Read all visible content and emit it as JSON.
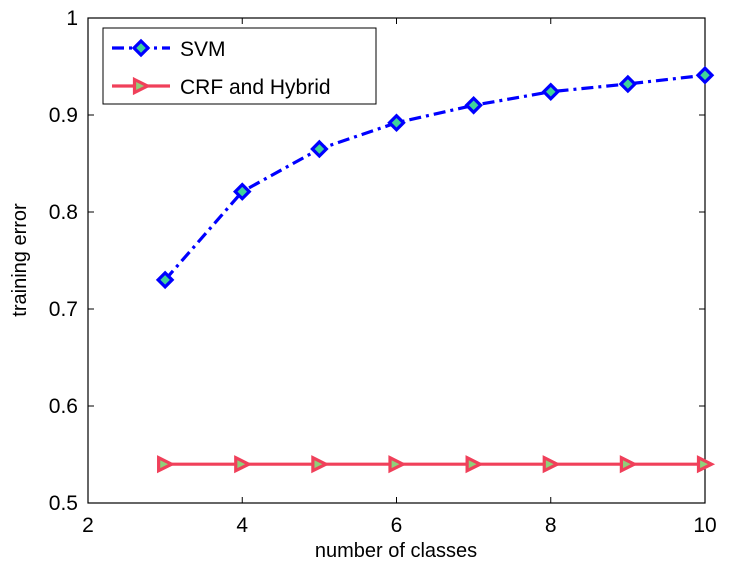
{
  "chart_data": {
    "type": "line",
    "title": "",
    "xlabel": "number of classes",
    "ylabel": "training error",
    "xlim": [
      2,
      10
    ],
    "ylim": [
      0.5,
      1
    ],
    "xticks": [
      "2",
      "4",
      "6",
      "8",
      "10"
    ],
    "yticks": [
      "0.5",
      "0.6",
      "0.7",
      "0.8",
      "0.9",
      "1"
    ],
    "x": [
      3,
      4,
      5,
      6,
      7,
      8,
      9,
      10
    ],
    "grid": false,
    "legend_position": "top-left",
    "series": [
      {
        "name": "SVM",
        "values": [
          0.73,
          0.821,
          0.865,
          0.892,
          0.91,
          0.924,
          0.932,
          0.941
        ],
        "color": "#0000ff",
        "line_style": "dash-dot",
        "marker": "diamond",
        "marker_fill": "#3fd39a"
      },
      {
        "name": "CRF and Hybrid",
        "values": [
          0.54,
          0.54,
          0.54,
          0.54,
          0.54,
          0.54,
          0.54,
          0.54
        ],
        "color": "#f0405a",
        "line_style": "solid",
        "marker": "triangle-right",
        "marker_fill": "#8fd07a"
      }
    ]
  }
}
